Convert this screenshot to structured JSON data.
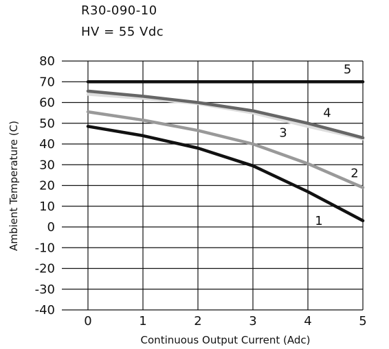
{
  "chart_data": {
    "type": "line",
    "title_lines": [
      "R30-090-10",
      "HV = 55 Vdc"
    ],
    "xlabel": "Continuous Output Current (Adc)",
    "ylabel": "Ambient Temperature (C)",
    "xlim": [
      0,
      5
    ],
    "ylim": [
      -40,
      80
    ],
    "xticks": [
      0,
      1,
      2,
      3,
      4,
      5
    ],
    "yticks": [
      80,
      70,
      60,
      50,
      40,
      30,
      20,
      10,
      0,
      -10,
      -20,
      -30,
      -40
    ],
    "grid": true,
    "series": [
      {
        "name": "1",
        "color": "#111111",
        "x": [
          0,
          1,
          2,
          3,
          4,
          5
        ],
        "y": [
          48.5,
          44,
          38,
          29.5,
          17,
          3
        ]
      },
      {
        "name": "2",
        "color": "#999999",
        "x": [
          0,
          1,
          2,
          3,
          4,
          5
        ],
        "y": [
          55.5,
          51.5,
          46.5,
          40,
          30.5,
          19
        ]
      },
      {
        "name": "3",
        "color": "#dddddd",
        "x": [
          0,
          1,
          2,
          3,
          4,
          5
        ],
        "y": [
          64,
          62,
          59.5,
          55,
          48.5,
          42.5
        ]
      },
      {
        "name": "4",
        "color": "#666666",
        "x": [
          0,
          1,
          2,
          3,
          4,
          5
        ],
        "y": [
          65.5,
          63,
          60,
          56,
          50,
          43
        ]
      },
      {
        "name": "5",
        "color": "#111111",
        "x": [
          0,
          1,
          2,
          3,
          4,
          5
        ],
        "y": [
          70,
          70,
          70,
          70,
          70,
          70
        ]
      }
    ]
  }
}
